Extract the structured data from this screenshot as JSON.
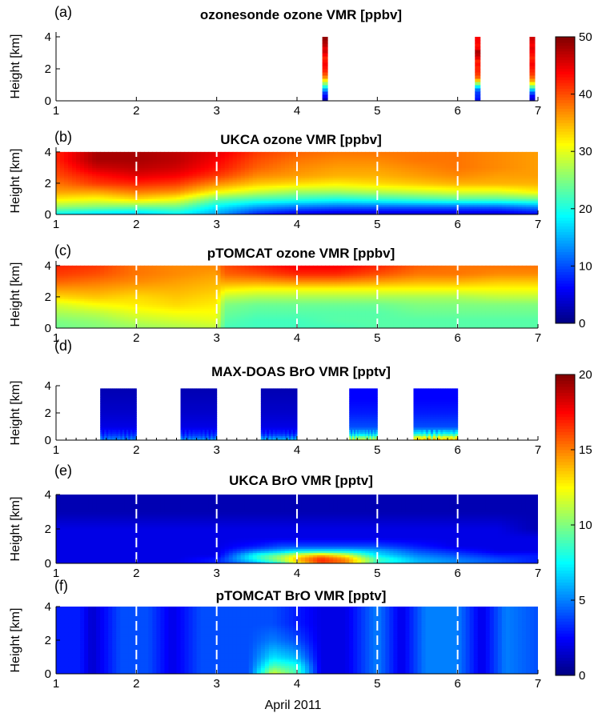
{
  "figure": {
    "xlabel": "April 2011",
    "x_ticks": [
      1,
      2,
      3,
      4,
      5,
      6,
      7
    ],
    "y_ticks": [
      0,
      2,
      4
    ],
    "ylabel": "Height [km]"
  },
  "colorbars": [
    {
      "panels": [
        0,
        1,
        2
      ],
      "min": 0,
      "max": 50,
      "ticks": [
        0,
        10,
        20,
        30,
        40,
        50
      ]
    },
    {
      "panels": [
        3,
        4,
        5
      ],
      "min": 0,
      "max": 20,
      "ticks": [
        0,
        5,
        10,
        15,
        20
      ]
    }
  ],
  "chart_data": [
    {
      "panel": "(a)",
      "type": "heatmap",
      "title": "ozonesonde ozone VMR [ppbv]",
      "ylabel": "Height [km]",
      "xlim": [
        1,
        7
      ],
      "ylim": [
        0,
        4.3
      ],
      "colormap": "jet",
      "clim": [
        0,
        50
      ],
      "dashed_day_lines": false,
      "profiles": [
        {
          "time": 4.35,
          "width": 0.07,
          "heights_km": [
            0.1,
            0.3,
            0.5,
            0.7,
            0.9,
            1.1,
            1.3,
            1.5,
            1.7,
            1.9,
            2.1,
            2.3,
            2.5,
            2.7,
            2.9,
            3.1,
            3.3,
            3.5,
            3.7,
            3.9
          ],
          "values": [
            3,
            6,
            9,
            14,
            20,
            26,
            32,
            37,
            40,
            42,
            43,
            44,
            43,
            42,
            44,
            46,
            45,
            47,
            48,
            49
          ]
        },
        {
          "time": 6.25,
          "width": 0.07,
          "heights_km": [
            0.1,
            0.3,
            0.5,
            0.7,
            0.9,
            1.1,
            1.3,
            1.5,
            1.7,
            1.9,
            2.1,
            2.3,
            2.5,
            2.7,
            2.9,
            3.1,
            3.3,
            3.5,
            3.7,
            3.9
          ],
          "values": [
            7,
            8,
            9,
            12,
            18,
            26,
            34,
            39,
            41,
            42,
            42,
            43,
            42,
            45,
            47,
            48,
            44,
            43,
            44,
            44
          ]
        },
        {
          "time": 6.93,
          "width": 0.07,
          "heights_km": [
            0.1,
            0.3,
            0.5,
            0.7,
            0.9,
            1.1,
            1.3,
            1.5,
            1.7,
            1.9,
            2.1,
            2.3,
            2.5,
            2.7,
            2.9,
            3.1,
            3.3,
            3.5,
            3.7,
            3.9
          ],
          "values": [
            4,
            6,
            10,
            16,
            24,
            31,
            36,
            39,
            41,
            42,
            43,
            44,
            43,
            42,
            43,
            44,
            45,
            44,
            45,
            46
          ]
        }
      ]
    },
    {
      "panel": "(b)",
      "type": "heatmap",
      "title": "UKCA ozone VMR [ppbv]",
      "ylabel": "Height [km]",
      "xlim": [
        1,
        7
      ],
      "ylim": [
        0,
        4.3
      ],
      "colormap": "jet",
      "clim": [
        0,
        50
      ],
      "dashed_day_lines": true,
      "times": [
        1.0,
        1.5,
        2.0,
        2.5,
        3.0,
        3.5,
        4.0,
        4.5,
        5.0,
        5.5,
        6.0,
        6.5,
        7.0
      ],
      "heights_km": [
        0.0,
        0.5,
        1.0,
        1.5,
        2.0,
        2.5,
        3.0,
        3.5,
        4.0
      ],
      "values": [
        [
          18,
          16,
          15,
          18,
          14,
          7,
          4,
          3,
          3,
          3,
          3,
          3,
          5
        ],
        [
          26,
          25,
          24,
          24,
          18,
          14,
          12,
          11,
          11,
          11,
          11,
          11,
          13
        ],
        [
          32,
          31,
          33,
          31,
          24,
          22,
          21,
          20,
          21,
          22,
          23,
          23,
          24
        ],
        [
          36,
          36,
          38,
          37,
          32,
          29,
          27,
          27,
          28,
          29,
          30,
          30,
          32
        ],
        [
          38,
          41,
          42,
          41,
          37,
          34,
          33,
          32,
          33,
          34,
          35,
          35,
          35
        ],
        [
          40,
          43,
          45,
          44,
          41,
          37,
          36,
          35,
          35,
          36,
          37,
          36,
          36
        ],
        [
          41,
          46,
          47,
          46,
          43,
          39,
          37,
          36,
          36,
          37,
          38,
          37,
          36
        ],
        [
          42,
          48,
          48,
          47,
          44,
          40,
          38,
          37,
          37,
          38,
          38,
          37,
          36
        ],
        [
          42,
          48,
          48,
          47,
          45,
          41,
          39,
          38,
          38,
          38,
          38,
          37,
          36
        ]
      ]
    },
    {
      "panel": "(c)",
      "type": "heatmap",
      "title": "pTOMCAT ozone VMR [ppbv]",
      "ylabel": "Height [km]",
      "xlim": [
        1,
        7
      ],
      "ylim": [
        0,
        4.3
      ],
      "colormap": "jet",
      "clim": [
        0,
        50
      ],
      "dashed_day_lines": true,
      "times": [
        1.0,
        1.5,
        2.0,
        2.5,
        3.0,
        3.1,
        3.5,
        4.0,
        4.5,
        5.0,
        5.5,
        6.0,
        6.5,
        7.0
      ],
      "heights_km": [
        0.0,
        0.5,
        1.0,
        1.5,
        2.0,
        2.5,
        3.0,
        3.5,
        4.0
      ],
      "values": [
        [
          24,
          25,
          26,
          27,
          28,
          22,
          22,
          22,
          22,
          23,
          23,
          23,
          23,
          23
        ],
        [
          25,
          26,
          28,
          29,
          30,
          23,
          22,
          22,
          23,
          23,
          23,
          23,
          23,
          23
        ],
        [
          27,
          28,
          30,
          31,
          31,
          24,
          23,
          23,
          23,
          23,
          24,
          24,
          24,
          24
        ],
        [
          29,
          31,
          32,
          33,
          32,
          25,
          24,
          24,
          24,
          24,
          25,
          25,
          25,
          25
        ],
        [
          33,
          34,
          33,
          34,
          33,
          28,
          27,
          27,
          27,
          27,
          27,
          27,
          28,
          28
        ],
        [
          36,
          36,
          35,
          35,
          34,
          32,
          31,
          31,
          31,
          31,
          31,
          31,
          31,
          31
        ],
        [
          39,
          38,
          37,
          36,
          35,
          36,
          36,
          37,
          37,
          36,
          35,
          35,
          34,
          34
        ],
        [
          41,
          40,
          38,
          37,
          36,
          39,
          40,
          42,
          42,
          40,
          38,
          38,
          37,
          37
        ],
        [
          42,
          41,
          38,
          37,
          37,
          40,
          42,
          44,
          44,
          42,
          39,
          38,
          38,
          38
        ]
      ]
    },
    {
      "panel": "(d)",
      "type": "heatmap",
      "title": "MAX-DOAS BrO VMR [pptv]",
      "ylabel": "Height [km]",
      "xlim": [
        1,
        7
      ],
      "ylim": [
        0,
        4
      ],
      "colormap": "jet",
      "clim": [
        0,
        20
      ],
      "dashed_day_lines": false,
      "blocks": [
        {
          "t0": 1.55,
          "t1": 2.0,
          "heights_km": [
            0.0,
            0.25,
            0.5,
            1.0,
            2.0,
            3.0,
            3.8
          ],
          "values": [
            5.0,
            4.0,
            3.0,
            2.0,
            1.5,
            1.2,
            1.0
          ]
        },
        {
          "t0": 2.55,
          "t1": 3.0,
          "heights_km": [
            0.0,
            0.25,
            0.5,
            1.0,
            2.0,
            3.0,
            3.8
          ],
          "values": [
            5.5,
            4.0,
            3.0,
            2.0,
            1.5,
            1.2,
            1.0
          ]
        },
        {
          "t0": 3.55,
          "t1": 4.0,
          "heights_km": [
            0.0,
            0.25,
            0.5,
            1.0,
            2.0,
            3.0,
            3.8
          ],
          "values": [
            6.0,
            4.5,
            3.0,
            2.0,
            1.5,
            1.2,
            1.0
          ]
        },
        {
          "t0": 4.65,
          "t1": 5.0,
          "heights_km": [
            0.0,
            0.25,
            0.5,
            1.0,
            2.0,
            3.0,
            3.8
          ],
          "values": [
            11.0,
            9.0,
            6.0,
            4.0,
            3.0,
            2.5,
            2.5
          ]
        },
        {
          "t0": 5.45,
          "t1": 6.0,
          "heights_km": [
            0.0,
            0.25,
            0.5,
            1.0,
            2.0,
            3.0,
            3.8
          ],
          "values": [
            13.0,
            11.0,
            7.0,
            4.0,
            3.0,
            2.5,
            2.5
          ]
        }
      ]
    },
    {
      "panel": "(e)",
      "type": "heatmap",
      "title": "UKCA BrO VMR [pptv]",
      "ylabel": "Height [km]",
      "xlim": [
        1,
        7
      ],
      "ylim": [
        0,
        4
      ],
      "colormap": "jet",
      "clim": [
        0,
        20
      ],
      "dashed_day_lines": true,
      "times": [
        1.0,
        1.5,
        2.0,
        2.5,
        3.0,
        3.5,
        3.8,
        4.0,
        4.3,
        4.6,
        5.0,
        5.5,
        6.0,
        6.5,
        7.0
      ],
      "heights_km": [
        0.0,
        0.25,
        0.5,
        0.75,
        1.0,
        1.5,
        2.0,
        3.0,
        4.0
      ],
      "values": [
        [
          2,
          2,
          2,
          2,
          3,
          5,
          8,
          12,
          16,
          15,
          8,
          6,
          5,
          4,
          3
        ],
        [
          2,
          2,
          2,
          2,
          3,
          8,
          11,
          14,
          17,
          15,
          9,
          6,
          5,
          4,
          3
        ],
        [
          2,
          2,
          2,
          2,
          2,
          8,
          10,
          12,
          14,
          12,
          7,
          5,
          4,
          3,
          3
        ],
        [
          2,
          2,
          2,
          2,
          2,
          5,
          6,
          7,
          7,
          7,
          6,
          4,
          3,
          2,
          2
        ],
        [
          2,
          2,
          2,
          2,
          2,
          3,
          4,
          4,
          4,
          4,
          4,
          3,
          2,
          2,
          2
        ],
        [
          2,
          2,
          2,
          2,
          2,
          2,
          2,
          2,
          2,
          2,
          2,
          2,
          2,
          2,
          2
        ],
        [
          2,
          2,
          2,
          2,
          2,
          2,
          2,
          2,
          2,
          2,
          2,
          2,
          2,
          2,
          1
        ],
        [
          1,
          1,
          1,
          1,
          1,
          1,
          1,
          1,
          1,
          1,
          1,
          1,
          1,
          1,
          1
        ],
        [
          1,
          1,
          1,
          1,
          1,
          1,
          1,
          1,
          1,
          1,
          1,
          1,
          1,
          1,
          1
        ]
      ]
    },
    {
      "panel": "(f)",
      "type": "heatmap",
      "title": "pTOMCAT BrO VMR [pptv]",
      "ylabel": "Height [km]",
      "xlim": [
        1,
        7
      ],
      "ylim": [
        0,
        4
      ],
      "colormap": "jet",
      "clim": [
        0,
        20
      ],
      "dashed_day_lines": true,
      "times": [
        1.0,
        1.15,
        1.3,
        1.45,
        1.8,
        2.15,
        2.45,
        2.8,
        3.1,
        3.4,
        3.7,
        4.0,
        4.3,
        4.6,
        5.0,
        5.3,
        5.6,
        6.0,
        6.3,
        6.6,
        7.0
      ],
      "heights_km": [
        0.0,
        0.5,
        1.0,
        2.0,
        3.0,
        4.0
      ],
      "values": [
        [
          3,
          3,
          3,
          1.5,
          4,
          4,
          2,
          4,
          4,
          4,
          12,
          9,
          2,
          2,
          5,
          2,
          5,
          5,
          2,
          5,
          4
        ],
        [
          3,
          3,
          3,
          1.5,
          4,
          4,
          2,
          4,
          4,
          4,
          9,
          8,
          2,
          2,
          5,
          2,
          5,
          5,
          2,
          5,
          4
        ],
        [
          3,
          3,
          3,
          1.5,
          4,
          4,
          2,
          4,
          4,
          4,
          7,
          6,
          2,
          2,
          5,
          2,
          5,
          5,
          2,
          5,
          4
        ],
        [
          3,
          3,
          3,
          1.5,
          4,
          4,
          2,
          4,
          4,
          4,
          5,
          4,
          2,
          2,
          5,
          2,
          5,
          5,
          2,
          5,
          4
        ],
        [
          3,
          3,
          3,
          1.5,
          4,
          4,
          2,
          4,
          4,
          4,
          4,
          3,
          2,
          2,
          5,
          2,
          5,
          5,
          2,
          5,
          4
        ],
        [
          3,
          3,
          3,
          1.5,
          4,
          4,
          2,
          4,
          4,
          4,
          4,
          3,
          2,
          2,
          5,
          2,
          5,
          5,
          2,
          5,
          4
        ]
      ]
    }
  ]
}
